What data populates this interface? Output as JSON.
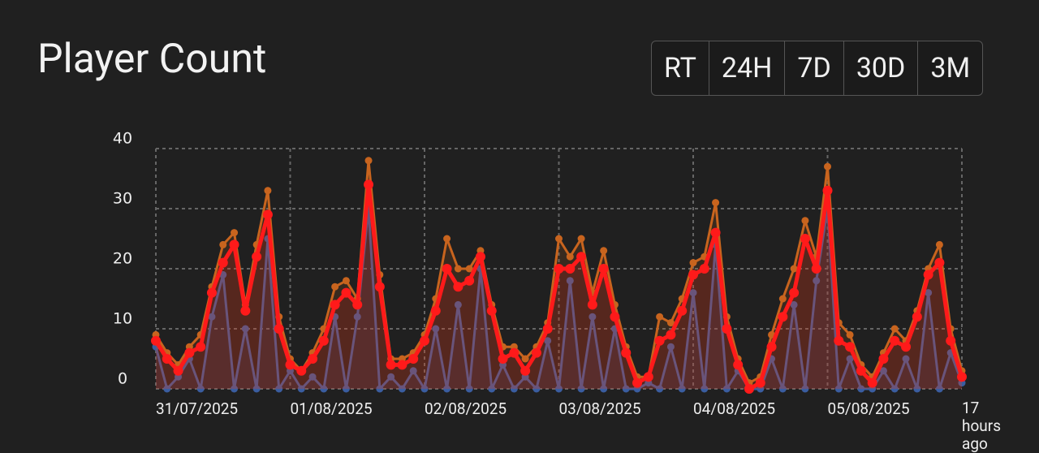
{
  "ui": {
    "title": "Player Count",
    "buttons": [
      "RT",
      "24H",
      "7D",
      "30D",
      "3M"
    ]
  },
  "chart_data": {
    "type": "line",
    "categories": [
      "31/07/2025",
      null,
      null,
      null,
      null,
      null,
      null,
      null,
      null,
      null,
      null,
      null,
      "01/08/2025",
      null,
      null,
      null,
      null,
      null,
      null,
      null,
      null,
      null,
      null,
      null,
      "02/08/2025",
      null,
      null,
      null,
      null,
      null,
      null,
      null,
      null,
      null,
      null,
      null,
      "03/08/2025",
      null,
      null,
      null,
      null,
      null,
      null,
      null,
      null,
      null,
      null,
      null,
      "04/08/2025",
      null,
      null,
      null,
      null,
      null,
      null,
      null,
      null,
      null,
      null,
      null,
      "05/08/2025",
      null,
      null,
      null,
      null,
      null,
      null,
      null,
      null,
      null,
      null,
      null,
      "17 hours ago"
    ],
    "series": [
      {
        "color": "#3a5da0",
        "values": [
          7,
          0,
          2,
          5,
          0,
          12,
          19,
          0,
          10,
          0,
          25,
          0,
          3,
          0,
          2,
          0,
          12,
          0,
          12,
          30,
          0,
          2,
          0,
          3,
          0,
          10,
          0,
          14,
          0,
          20,
          0,
          4,
          0,
          2,
          0,
          8,
          0,
          18,
          0,
          12,
          0,
          10,
          0,
          0,
          1,
          0,
          7,
          0,
          16,
          0,
          24,
          0,
          3,
          0,
          0,
          5,
          0,
          14,
          0,
          18,
          30,
          0,
          5,
          0,
          0,
          3,
          0,
          5,
          0,
          16,
          0,
          6,
          1
        ]
      },
      {
        "color": "#c8641e",
        "values": [
          9,
          6,
          4,
          7,
          9,
          17,
          24,
          26,
          14,
          24,
          33,
          12,
          5,
          3,
          6,
          10,
          17,
          18,
          15,
          38,
          19,
          5,
          5,
          6,
          9,
          15,
          25,
          20,
          20,
          23,
          14,
          7,
          7,
          5,
          7,
          11,
          25,
          22,
          25,
          16,
          23,
          14,
          7,
          2,
          2,
          12,
          11,
          15,
          21,
          22,
          31,
          12,
          5,
          1,
          2,
          9,
          15,
          20,
          28,
          22,
          37,
          11,
          9,
          4,
          2,
          6,
          10,
          8,
          13,
          20,
          24,
          10,
          3
        ]
      },
      {
        "color": "#ff1a1a",
        "values": [
          8,
          5,
          3,
          6,
          7,
          16,
          21,
          24,
          13,
          22,
          29,
          10,
          4,
          3,
          5,
          8,
          14,
          16,
          14,
          34,
          17,
          4,
          4,
          5,
          8,
          13,
          20,
          17,
          18,
          22,
          13,
          5,
          6,
          3,
          6,
          10,
          20,
          20,
          22,
          14,
          20,
          12,
          6,
          1,
          2,
          8,
          9,
          13,
          19,
          20,
          26,
          10,
          4,
          0,
          1,
          7,
          12,
          16,
          25,
          20,
          33,
          8,
          7,
          3,
          1,
          5,
          8,
          7,
          12,
          19,
          21,
          8,
          2
        ]
      }
    ],
    "ylim": [
      0,
      40
    ],
    "yticks": [
      0,
      10,
      20,
      30,
      40
    ],
    "grid": true
  }
}
